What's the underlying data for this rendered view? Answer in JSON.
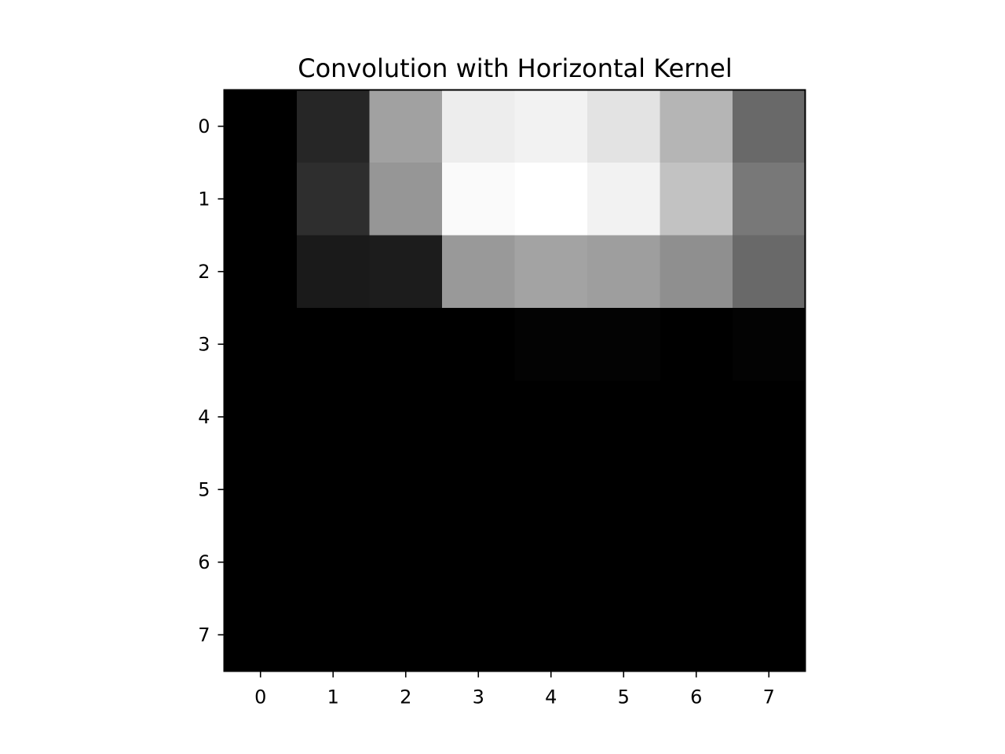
{
  "chart_data": {
    "type": "heatmap",
    "title": "Convolution with Horizontal Kernel",
    "xlabel": "",
    "ylabel": "",
    "colormap": "gray",
    "x_ticks": [
      "0",
      "1",
      "2",
      "3",
      "4",
      "5",
      "6",
      "7"
    ],
    "y_ticks": [
      "0",
      "1",
      "2",
      "3",
      "4",
      "5",
      "6",
      "7"
    ],
    "values": [
      [
        0.0,
        0.15,
        0.63,
        0.93,
        0.95,
        0.89,
        0.71,
        0.41
      ],
      [
        0.0,
        0.18,
        0.59,
        0.98,
        1.0,
        0.95,
        0.76,
        0.47
      ],
      [
        0.0,
        0.1,
        0.11,
        0.6,
        0.64,
        0.62,
        0.56,
        0.41
      ],
      [
        0.0,
        0.0,
        0.0,
        0.0,
        0.01,
        0.01,
        0.0,
        0.01
      ],
      [
        0.0,
        0.0,
        0.0,
        0.0,
        0.0,
        0.0,
        0.0,
        0.0
      ],
      [
        0.0,
        0.0,
        0.0,
        0.0,
        0.0,
        0.0,
        0.0,
        0.0
      ],
      [
        0.0,
        0.0,
        0.0,
        0.0,
        0.0,
        0.0,
        0.0,
        0.0
      ],
      [
        0.0,
        0.0,
        0.0,
        0.0,
        0.0,
        0.0,
        0.0,
        0.0
      ]
    ]
  }
}
